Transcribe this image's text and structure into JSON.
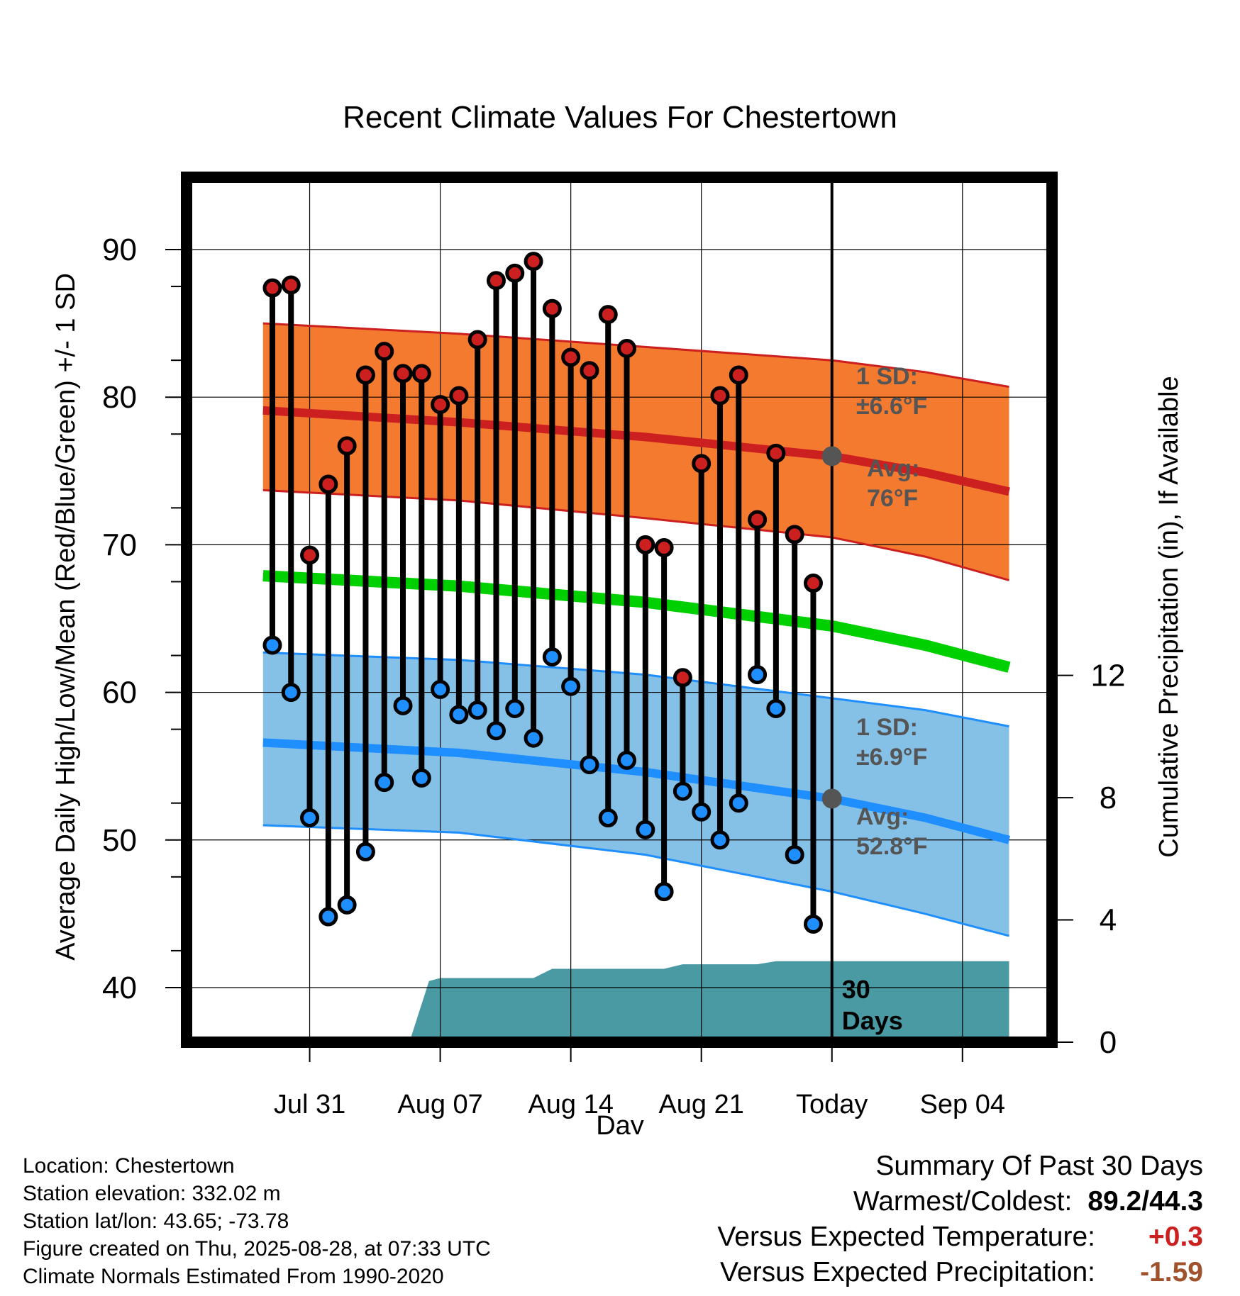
{
  "chart_data": {
    "type": "line",
    "title": "Recent Climate Values For Chestertown",
    "xlabel": "Day",
    "ylabel": "Average Daily High/Low/Mean (Red/Blue/Green) +/- 1 SD",
    "y2label": "Cumulative Precipitation (in), If Available",
    "x_range_days": [
      -34.6,
      11.8
    ],
    "ylim": [
      36.3,
      94.9
    ],
    "y2lim": [
      0,
      28.3
    ],
    "x_ticks": [
      {
        "day": -28,
        "label": "Jul 31"
      },
      {
        "day": -21,
        "label": "Aug 07"
      },
      {
        "day": -14,
        "label": "Aug 14"
      },
      {
        "day": -7,
        "label": "Aug 21"
      },
      {
        "day": 0,
        "label": "Today"
      },
      {
        "day": 7,
        "label": "Sep 04"
      }
    ],
    "y_ticks": [
      40,
      50,
      60,
      70,
      80,
      90
    ],
    "y2_ticks": [
      0,
      4,
      8,
      12
    ],
    "today_label": "30\nDays",
    "colors": {
      "high": "#cc1f1f",
      "low": "#1f8fff",
      "mean": "#00d000",
      "high_band": "#f47a30",
      "low_band": "#85c0e6",
      "precip": "#4a9aa4",
      "annotation": "#555555"
    },
    "normals": {
      "high_avg": [
        [
          -30.5,
          79.1
        ],
        [
          -20,
          78.3
        ],
        [
          -10,
          77.3
        ],
        [
          0,
          76.0
        ],
        [
          5,
          74.9
        ],
        [
          9.5,
          73.6
        ]
      ],
      "high_upper": [
        [
          -30.5,
          85.0
        ],
        [
          -20,
          84.3
        ],
        [
          -10,
          83.4
        ],
        [
          0,
          82.5
        ],
        [
          5,
          81.7
        ],
        [
          9.5,
          80.7
        ]
      ],
      "high_lower": [
        [
          -30.5,
          73.7
        ],
        [
          -20,
          73.0
        ],
        [
          -10,
          71.8
        ],
        [
          0,
          70.5
        ],
        [
          5,
          69.2
        ],
        [
          9.5,
          67.6
        ]
      ],
      "low_avg": [
        [
          -30.5,
          56.6
        ],
        [
          -20,
          55.9
        ],
        [
          -10,
          54.6
        ],
        [
          0,
          52.8
        ],
        [
          5,
          51.5
        ],
        [
          9.5,
          50.0
        ]
      ],
      "low_upper": [
        [
          -30.5,
          62.7
        ],
        [
          -20,
          62.2
        ],
        [
          -10,
          61.2
        ],
        [
          0,
          59.6
        ],
        [
          5,
          58.8
        ],
        [
          9.5,
          57.7
        ]
      ],
      "low_lower": [
        [
          -30.5,
          51.0
        ],
        [
          -20,
          50.5
        ],
        [
          -10,
          49.0
        ],
        [
          0,
          46.5
        ],
        [
          5,
          45.0
        ],
        [
          9.5,
          43.5
        ]
      ],
      "mean": [
        [
          -30.5,
          67.9
        ],
        [
          -20,
          67.2
        ],
        [
          -10,
          66.1
        ],
        [
          0,
          64.5
        ],
        [
          5,
          63.2
        ],
        [
          9.5,
          61.7
        ]
      ]
    },
    "annotations": {
      "high_sd": {
        "line1": "1 SD:",
        "line2": "±6.6°F"
      },
      "high_avg": {
        "line1": "Avg:",
        "line2": "76°F"
      },
      "low_sd": {
        "line1": "1 SD:",
        "line2": "±6.9°F"
      },
      "low_avg": {
        "line1": "Avg:",
        "line2": "52.8°F"
      }
    },
    "daily": {
      "day": [
        -30,
        -29,
        -28,
        -27,
        -26,
        -25,
        -24,
        -23,
        -22,
        -21,
        -20,
        -19,
        -18,
        -17,
        -16,
        -15,
        -14,
        -13,
        -12,
        -11,
        -10,
        -9,
        -8,
        -7,
        -6,
        -5,
        -4,
        -3,
        -2,
        -1
      ],
      "high": [
        87.4,
        87.6,
        69.3,
        74.1,
        76.7,
        81.5,
        83.1,
        81.6,
        81.6,
        79.5,
        80.1,
        83.9,
        87.9,
        88.4,
        89.2,
        86.0,
        82.7,
        81.8,
        85.6,
        83.3,
        70.0,
        69.8,
        61.0,
        75.5,
        80.1,
        81.5,
        71.7,
        76.2,
        70.7,
        67.4
      ],
      "low": [
        63.2,
        60.0,
        51.5,
        44.8,
        45.6,
        49.2,
        53.9,
        59.1,
        54.2,
        60.2,
        58.5,
        58.8,
        57.4,
        58.9,
        56.9,
        62.4,
        60.4,
        55.1,
        51.5,
        55.4,
        50.7,
        46.5,
        53.3,
        51.9,
        50.0,
        52.5,
        61.2,
        58.9,
        49.0,
        44.3
      ]
    },
    "precip_cumulative": [
      [
        -22.6,
        0
      ],
      [
        -22.6,
        0.1
      ],
      [
        -21.6,
        2.0
      ],
      [
        -21,
        2.1
      ],
      [
        -19,
        2.1
      ],
      [
        -17,
        2.1
      ],
      [
        -16,
        2.1
      ],
      [
        -15,
        2.4
      ],
      [
        -14,
        2.4
      ],
      [
        -12,
        2.4
      ],
      [
        -11,
        2.4
      ],
      [
        -10,
        2.4
      ],
      [
        -9,
        2.4
      ],
      [
        -8,
        2.55
      ],
      [
        -7,
        2.55
      ],
      [
        -5,
        2.55
      ],
      [
        -4,
        2.55
      ],
      [
        -3,
        2.65
      ],
      [
        -2,
        2.65
      ],
      [
        0,
        2.65
      ],
      [
        9.5,
        2.65
      ],
      [
        9.5,
        0
      ]
    ]
  },
  "footer": {
    "location": "Location: Chestertown",
    "elevation": "Station elevation: 332.02 m",
    "latlon": "Station lat/lon: 43.65; -73.78",
    "created": "Figure created on Thu, 2025-08-28, at 07:33 UTC",
    "normals": "Climate Normals Estimated From 1990-2020"
  },
  "summary": {
    "title": "Summary Of Past 30 Days",
    "warm_cold_label": "Warmest/Coldest:",
    "warm_cold_value": "89.2/44.3",
    "temp_label": "Versus Expected Temperature:",
    "temp_value": "+0.3",
    "temp_color": "#cc1f1f",
    "precip_label": "Versus Expected Precipitation:",
    "precip_value": "-1.59",
    "precip_color": "#a0522d"
  }
}
